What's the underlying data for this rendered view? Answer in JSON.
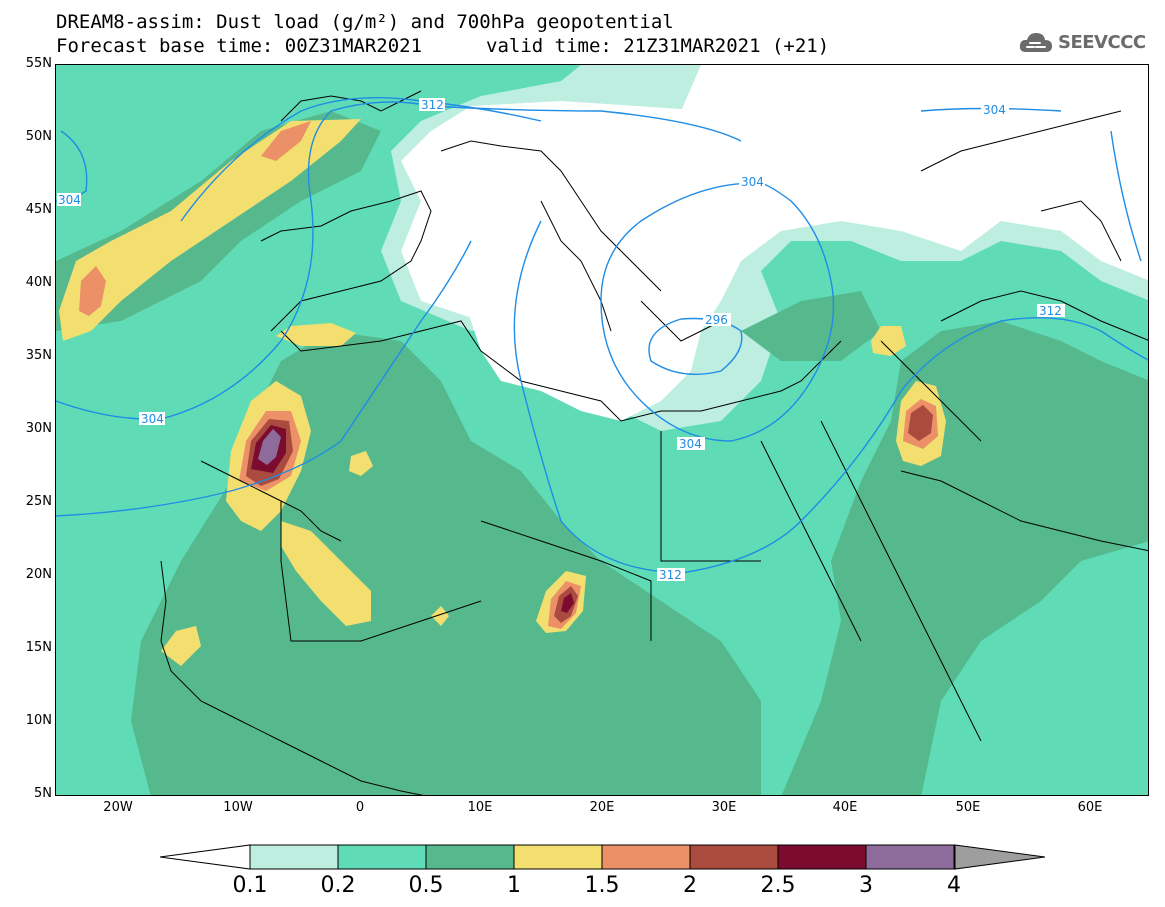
{
  "header": {
    "title": "DREAM8-assim: Dust load (g/m²) and 700hPa geopotential",
    "base_time": "Forecast base time: 00Z31MAR2021",
    "valid_time": "valid time: 21Z31MAR2021 (+21)"
  },
  "logo": {
    "text": "SEEVCCC",
    "icon": "cloud-icon"
  },
  "axes": {
    "lat_labels": [
      "55N",
      "50N",
      "45N",
      "40N",
      "35N",
      "30N",
      "25N",
      "20N",
      "15N",
      "10N",
      "5N"
    ],
    "lon_labels": [
      "20W",
      "10W",
      "0",
      "10E",
      "20E",
      "30E",
      "40E",
      "50E",
      "60E"
    ]
  },
  "contours": [
    "312",
    "304",
    "304",
    "304",
    "296",
    "304",
    "312",
    "312",
    "304"
  ],
  "colorbar": {
    "labels": [
      "0.1",
      "0.2",
      "0.5",
      "1",
      "1.5",
      "2",
      "2.5",
      "3",
      "4"
    ],
    "colors": [
      "#bdeee0",
      "#5fdcb5",
      "#56b98e",
      "#f2df70",
      "#ec9067",
      "#a94b3e",
      "#7b0b2f",
      "#8d6c9c",
      "#9e9e9e"
    ]
  }
}
